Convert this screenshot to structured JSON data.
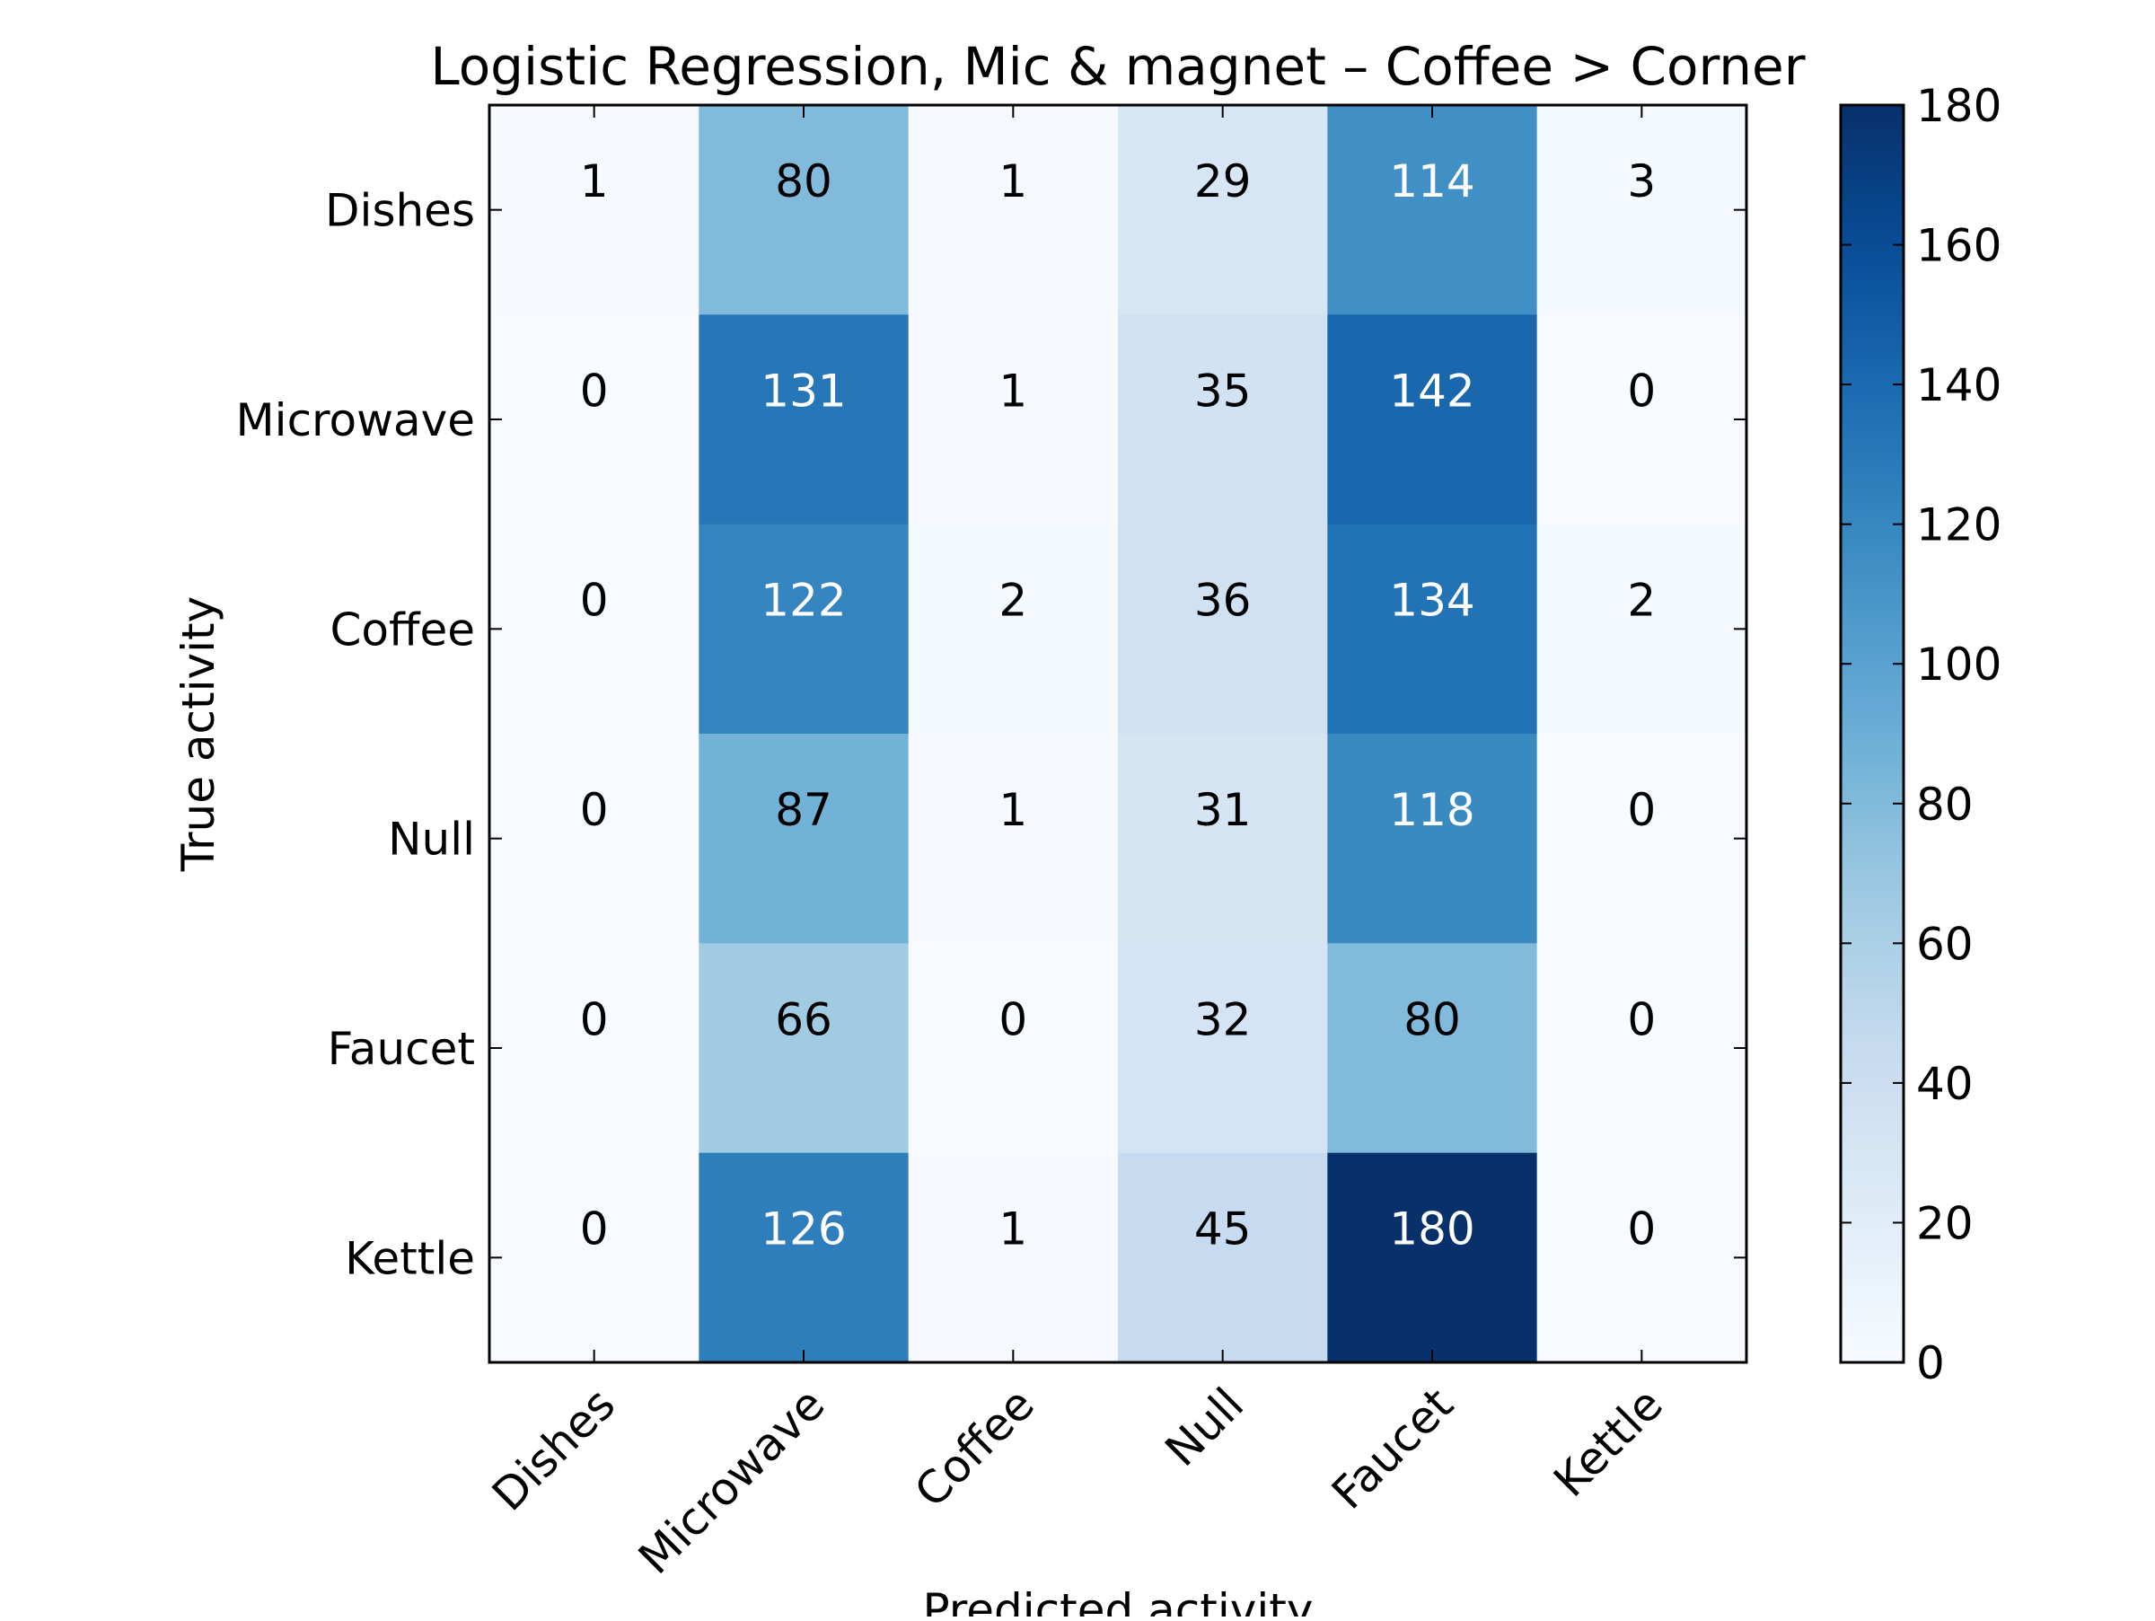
{
  "chart_data": {
    "type": "heatmap",
    "title": "Logistic Regression, Mic & magnet – Coffee > Corner",
    "xlabel": "Predicted activity",
    "ylabel": "True activity",
    "x_categories": [
      "Dishes",
      "Microwave",
      "Coffee",
      "Null",
      "Faucet",
      "Kettle"
    ],
    "y_categories": [
      "Dishes",
      "Microwave",
      "Coffee",
      "Null",
      "Faucet",
      "Kettle"
    ],
    "values": [
      [
        1,
        80,
        1,
        29,
        114,
        3
      ],
      [
        0,
        131,
        1,
        35,
        142,
        0
      ],
      [
        0,
        122,
        2,
        36,
        134,
        2
      ],
      [
        0,
        87,
        1,
        31,
        118,
        0
      ],
      [
        0,
        66,
        0,
        32,
        80,
        0
      ],
      [
        0,
        126,
        1,
        45,
        180,
        0
      ]
    ],
    "colorbar": {
      "min": 0,
      "max": 180,
      "ticks": [
        0,
        20,
        40,
        60,
        80,
        100,
        120,
        140,
        160,
        180
      ],
      "colormap": "Blues"
    },
    "text_colors": {
      "dark": "#000000",
      "light": "#ffffff"
    }
  }
}
